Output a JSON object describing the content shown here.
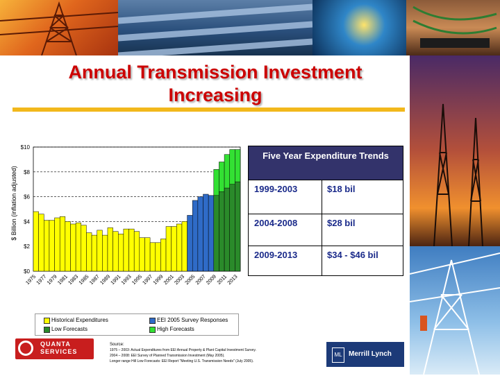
{
  "title": {
    "line1": "Annual Transmission Investment",
    "line2": "Increasing"
  },
  "chart_data": {
    "type": "bar",
    "ylabel": "$ Billion (inflation adjusted)",
    "ylim": [
      0,
      10
    ],
    "yticks": [
      "$0",
      "$2",
      "$4",
      "$6",
      "$8",
      "$10"
    ],
    "ytick_values": [
      0,
      2,
      4,
      6,
      8,
      10
    ],
    "grid": "dashed horizontal",
    "years": [
      1975,
      1976,
      1977,
      1978,
      1979,
      1980,
      1981,
      1982,
      1983,
      1984,
      1985,
      1986,
      1987,
      1988,
      1989,
      1990,
      1991,
      1992,
      1993,
      1994,
      1995,
      1996,
      1997,
      1998,
      1999,
      2000,
      2001,
      2002,
      2003,
      2004,
      2005,
      2006,
      2007,
      2008,
      2009,
      2010,
      2011,
      2012,
      2013
    ],
    "xtick_labels": [
      "1975",
      "1977",
      "1979",
      "1981",
      "1983",
      "1985",
      "1987",
      "1989",
      "1991",
      "1993",
      "1995",
      "1997",
      "1999",
      "2001",
      "2003",
      "2005",
      "2007",
      "2009",
      "2011",
      "2013"
    ],
    "series": [
      {
        "name": "Historical Expenditures",
        "color": "#ffff00",
        "x": [
          1975,
          1976,
          1977,
          1978,
          1979,
          1980,
          1981,
          1982,
          1983,
          1984,
          1985,
          1986,
          1987,
          1988,
          1989,
          1990,
          1991,
          1992,
          1993,
          1994,
          1995,
          1996,
          1997,
          1998,
          1999,
          2000,
          2001,
          2002,
          2003
        ],
        "values": [
          4.8,
          4.6,
          4.1,
          4.1,
          4.3,
          4.4,
          4.0,
          3.8,
          3.9,
          3.7,
          3.1,
          2.9,
          3.3,
          2.9,
          3.5,
          3.2,
          3.0,
          3.4,
          3.4,
          3.2,
          2.7,
          2.7,
          2.3,
          2.3,
          2.6,
          3.6,
          3.6,
          3.8,
          4.0
        ]
      },
      {
        "name": "EEI 2005 Survey Responses",
        "color": "#2f6bc7",
        "x": [
          2004,
          2005,
          2006,
          2007,
          2008
        ],
        "values": [
          4.5,
          5.7,
          6.0,
          6.2,
          6.1
        ]
      },
      {
        "name": "Low Forecasts",
        "color": "#2a8a2a",
        "x": [
          2009,
          2010,
          2011,
          2012,
          2013
        ],
        "values": [
          6.1,
          6.4,
          6.7,
          7.0,
          7.2
        ]
      },
      {
        "name": "High Forecasts",
        "color": "#33e033",
        "x": [
          2009,
          2010,
          2011,
          2012,
          2013
        ],
        "values": [
          8.2,
          8.8,
          9.4,
          9.8,
          9.8
        ]
      }
    ],
    "legend": [
      "Historical Expenditures",
      "EEI 2005 Survey Responses",
      "Low Forecasts",
      "High Forecasts"
    ]
  },
  "table": {
    "header": "Five Year Expenditure Trends",
    "rows": [
      {
        "period": "1999-2003",
        "amount": "$18 bil"
      },
      {
        "period": "2004-2008",
        "amount": "$28 bil"
      },
      {
        "period": "2009-2013",
        "amount": "$34 - $46 bil"
      }
    ]
  },
  "source": {
    "title": "Source:",
    "lines": [
      "1975 – 2003: Actual Expenditures from EEI Annual Property & Plant Capital Investment Survey.",
      "2004 – 2008: EEI Survey of Planned Transmission Investment (May 2005).",
      "Longer range Hill Low Forecasts: EEI Report \"Meeting U.S. Transmission Needs\" (July 2005)."
    ]
  },
  "logos": {
    "quanta": "QUANTA SERVICES",
    "merrill": "Merrill Lynch",
    "merrill_mark": "ML"
  },
  "colors": {
    "title": "#cc0000",
    "rule": "#f2b81c",
    "table_header": "#33336b",
    "table_text": "#1a2a8a"
  }
}
